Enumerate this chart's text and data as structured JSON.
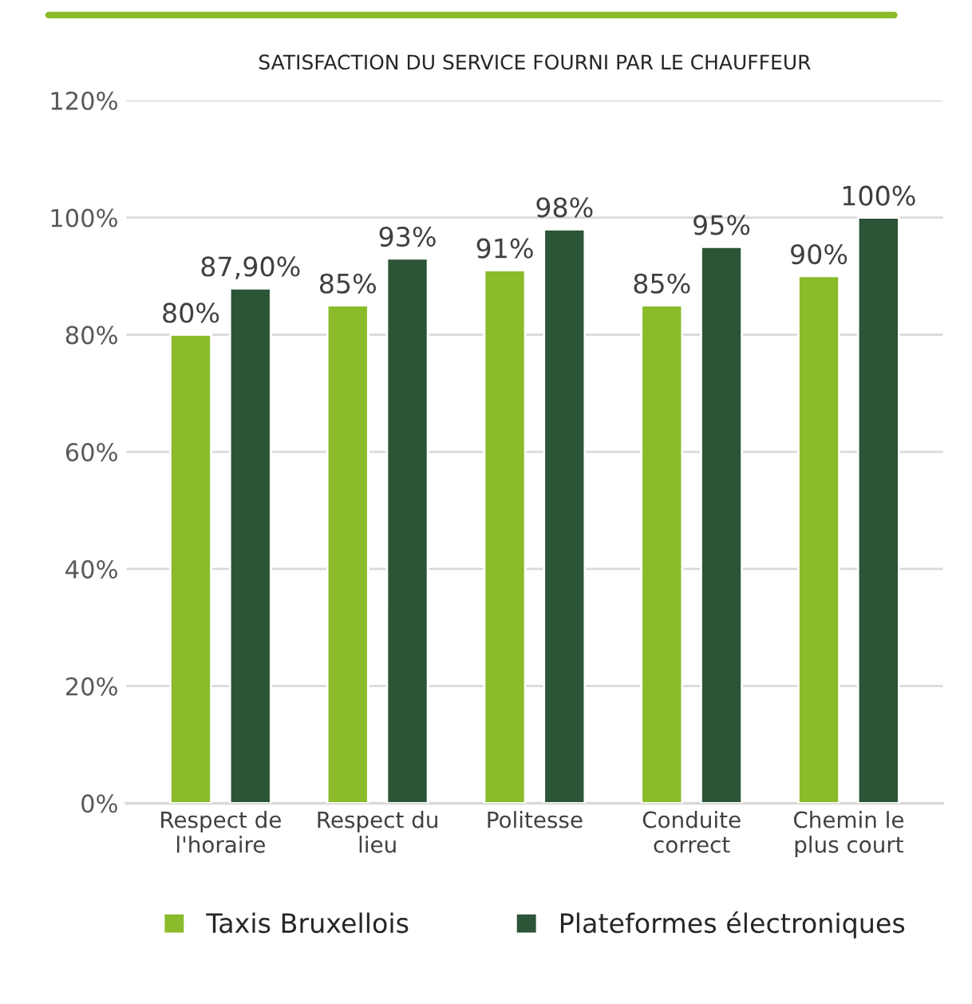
{
  "chart_data": {
    "type": "bar",
    "title": "SATISFACTION DU SERVICE FOURNI PAR LE CHAUFFEUR",
    "categories": [
      "Respect de\nl'horaire",
      "Respect du\nlieu",
      "Politesse",
      "Conduite\ncorrect",
      "Chemin le\nplus court"
    ],
    "series": [
      {
        "name": "Taxis Bruxellois",
        "color": "#8abb2a",
        "values": [
          80,
          85,
          91,
          85,
          90
        ],
        "value_labels": [
          "80%",
          "85%",
          "91%",
          "85%",
          "90%"
        ]
      },
      {
        "name": "Plateformes électroniques",
        "color": "#2c5437",
        "values": [
          87.9,
          93,
          98,
          95,
          100
        ],
        "value_labels": [
          "87,90%",
          "93%",
          "98%",
          "95%",
          "100%"
        ]
      }
    ],
    "ylim": [
      0,
      120
    ],
    "yticks": [
      {
        "value": 0,
        "label": "0%"
      },
      {
        "value": 20,
        "label": "20%"
      },
      {
        "value": 40,
        "label": "40%"
      },
      {
        "value": 60,
        "label": "60%"
      },
      {
        "value": 80,
        "label": "80%"
      },
      {
        "value": 100,
        "label": "100%"
      },
      {
        "value": 120,
        "label": "120%"
      }
    ],
    "grid": "y",
    "legend": "bottom"
  }
}
